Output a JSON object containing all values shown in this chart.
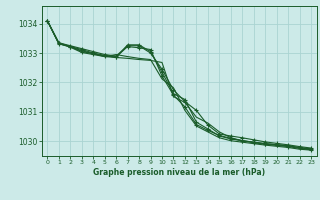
{
  "title": "Graphe pression niveau de la mer (hPa)",
  "background_color": "#cceae8",
  "grid_color": "#aad4d2",
  "line_color": "#1a5c2a",
  "xlim": [
    -0.5,
    23.5
  ],
  "ylim": [
    1029.5,
    1034.6
  ],
  "yticks": [
    1030,
    1031,
    1032,
    1033,
    1034
  ],
  "xticks": [
    0,
    1,
    2,
    3,
    4,
    5,
    6,
    7,
    8,
    9,
    10,
    11,
    12,
    13,
    14,
    15,
    16,
    17,
    18,
    19,
    20,
    21,
    22,
    23
  ],
  "series": [
    {
      "x": [
        0,
        1,
        2,
        3,
        4,
        5,
        6,
        7,
        8,
        9,
        10,
        11,
        12,
        13,
        14,
        15,
        16,
        17,
        18,
        19,
        20,
        21,
        22,
        23
      ],
      "y": [
        1034.1,
        1033.35,
        1033.25,
        1033.15,
        1033.05,
        1032.95,
        1032.9,
        1033.25,
        1033.25,
        1033.0,
        1032.45,
        1031.75,
        1031.35,
        1031.05,
        1030.55,
        1030.25,
        1030.18,
        1030.12,
        1030.05,
        1029.98,
        1029.93,
        1029.88,
        1029.82,
        1029.77
      ],
      "marker": "+"
    },
    {
      "x": [
        0,
        1,
        2,
        3,
        4,
        5,
        6,
        7,
        8,
        9,
        10,
        11,
        12,
        13,
        14,
        15,
        16,
        17,
        18,
        19,
        20,
        21,
        22,
        23
      ],
      "y": [
        1034.1,
        1033.35,
        1033.22,
        1033.12,
        1033.0,
        1032.92,
        1032.85,
        1033.28,
        1033.28,
        1033.05,
        1032.35,
        1031.62,
        1031.42,
        1030.65,
        1030.42,
        1030.18,
        1030.08,
        1030.02,
        1029.97,
        1029.92,
        1029.88,
        1029.84,
        1029.79,
        1029.74
      ],
      "marker": "+"
    },
    {
      "x": [
        0,
        1,
        2,
        3,
        4,
        5,
        6,
        7,
        8,
        9,
        10,
        11,
        12,
        13,
        14,
        15,
        16,
        17,
        18,
        19,
        20,
        21,
        22,
        23
      ],
      "y": [
        1034.1,
        1033.32,
        1033.22,
        1033.08,
        1032.98,
        1032.88,
        1032.95,
        1032.88,
        1032.82,
        1032.78,
        1032.12,
        1031.82,
        1031.05,
        1030.52,
        1030.32,
        1030.12,
        1030.02,
        1029.97,
        1029.92,
        1029.87,
        1029.83,
        1029.79,
        1029.73,
        1029.7
      ],
      "marker": null
    },
    {
      "x": [
        0,
        1,
        2,
        3,
        4,
        5,
        6,
        7,
        8,
        9,
        10,
        11,
        12,
        13,
        14,
        15,
        16,
        17,
        18,
        19,
        20,
        21,
        22,
        23
      ],
      "y": [
        1034.1,
        1033.32,
        1033.2,
        1033.02,
        1032.95,
        1032.88,
        1032.85,
        1032.82,
        1032.78,
        1032.75,
        1032.68,
        1031.52,
        1031.32,
        1030.82,
        1030.62,
        1030.32,
        1030.12,
        1030.02,
        1029.97,
        1029.92,
        1029.89,
        1029.85,
        1029.78,
        1029.73
      ],
      "marker": null
    },
    {
      "x": [
        0,
        1,
        2,
        3,
        4,
        5,
        6,
        7,
        8,
        9,
        10,
        11,
        12,
        13,
        14,
        15,
        16,
        17,
        18,
        19,
        20,
        21,
        22,
        23
      ],
      "y": [
        1034.1,
        1033.32,
        1033.22,
        1033.05,
        1032.98,
        1032.9,
        1032.87,
        1033.22,
        1033.18,
        1033.12,
        1032.22,
        1031.57,
        1031.17,
        1030.57,
        1030.37,
        1030.2,
        1030.1,
        1030.02,
        1029.95,
        1029.9,
        1029.86,
        1029.82,
        1029.76,
        1029.71
      ],
      "marker": "+"
    }
  ]
}
